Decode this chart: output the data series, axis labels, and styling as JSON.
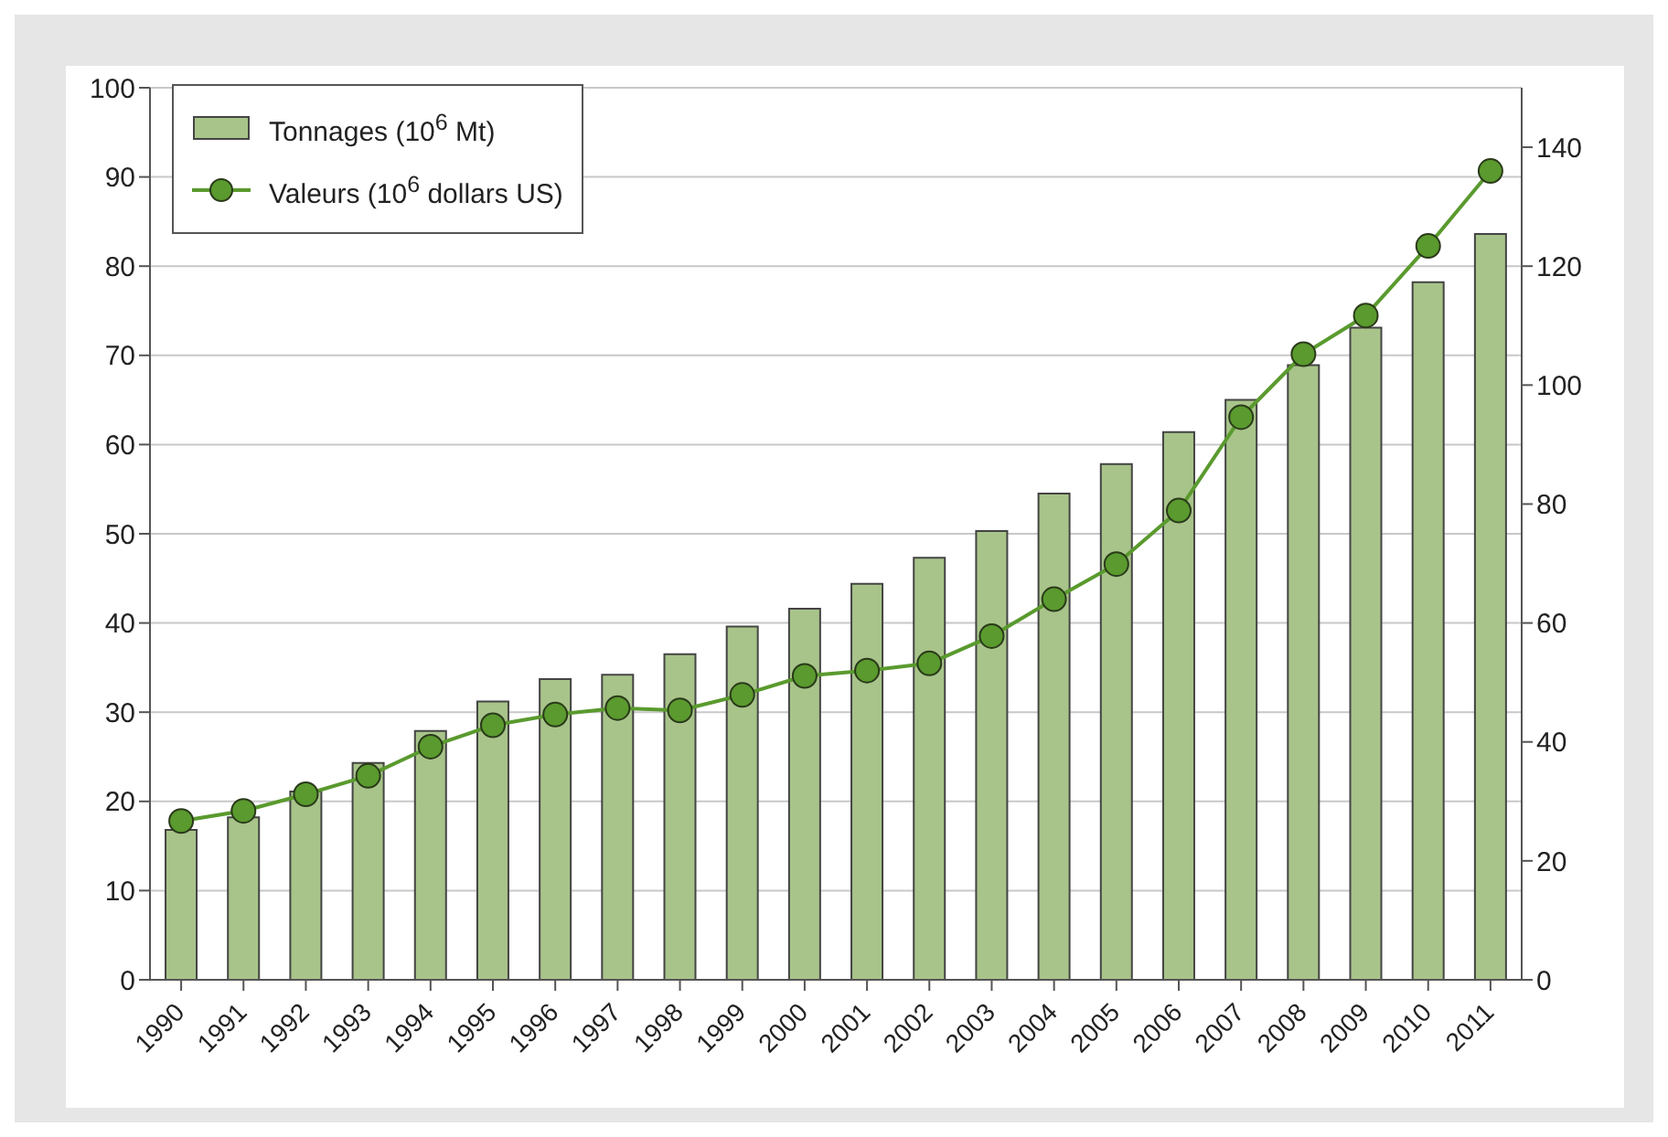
{
  "chart_data": {
    "type": "bar",
    "categories": [
      "1990",
      "1991",
      "1992",
      "1993",
      "1994",
      "1995",
      "1996",
      "1997",
      "1998",
      "1999",
      "2000",
      "2001",
      "2002",
      "2003",
      "2004",
      "2005",
      "2006",
      "2007",
      "2008",
      "2009",
      "2010",
      "2011"
    ],
    "series": [
      {
        "name": "Tonnages (10$^{6}$ Mt)",
        "color": "#a8c48a",
        "values": [
          16.8,
          18.2,
          21.1,
          24.3,
          27.9,
          31.2,
          33.7,
          34.2,
          36.5,
          39.6,
          41.6,
          44.4,
          47.3,
          50.3,
          54.5,
          57.8,
          61.4,
          65.0,
          68.9,
          73.1,
          78.2,
          83.6
        ]
      },
      {
        "name": "Valeurs (10$^{6}$ dollars US)",
        "type": "line",
        "axis": "y2",
        "color": "#5a9a2e",
        "marker": "circle",
        "values": [
          26.7,
          28.4,
          31.2,
          34.3,
          39.2,
          42.8,
          44.6,
          45.7,
          45.3,
          47.9,
          51.1,
          52.0,
          53.2,
          57.8,
          64.0,
          69.9,
          78.9,
          94.6,
          105.2,
          111.7,
          123.4,
          136.0
        ]
      }
    ],
    "ylim": [
      0,
      100
    ],
    "yticks": [
      0,
      10,
      20,
      30,
      40,
      50,
      60,
      70,
      80,
      90,
      100
    ],
    "y2lim": [
      0,
      150
    ],
    "y2ticks": [
      0,
      20,
      40,
      60,
      80,
      100,
      120,
      140
    ],
    "grid": "y",
    "legend": "top left"
  }
}
